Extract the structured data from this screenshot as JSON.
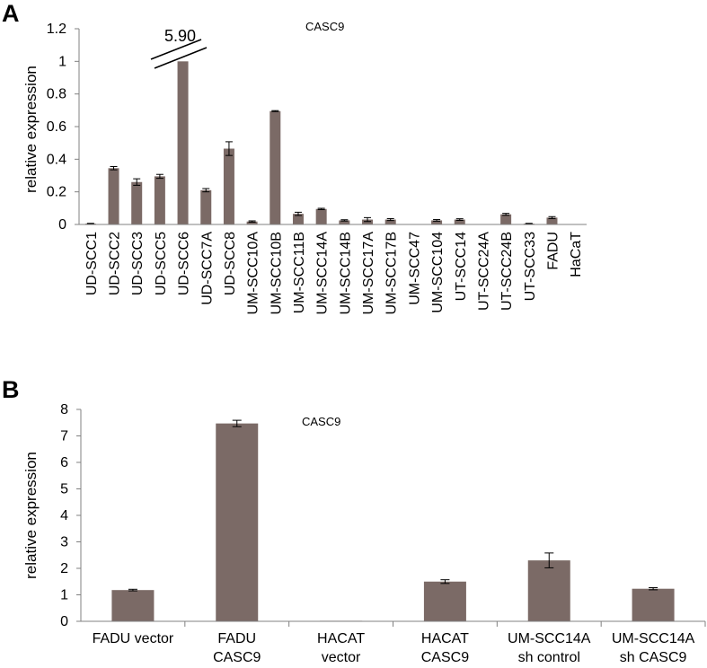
{
  "panels": [
    {
      "panel_label": "A",
      "chart_data": {
        "type": "bar",
        "title": "CASC9",
        "ylabel": "relative expression",
        "xlabel": "",
        "ylim": [
          0,
          1.2
        ],
        "yticks": [
          "0",
          "0.2",
          "0.4",
          "0.6",
          "0.8",
          "1",
          "1.2"
        ],
        "categories": [
          "UD-SCC1",
          "UD-SCC2",
          "UD-SCC3",
          "UD-SCC5",
          "UD-SCC6",
          "UD-SCC7A",
          "UD-SCC8",
          "UM-SCC10A",
          "UM-SCC10B",
          "UM-SCC11B",
          "UM-SCC14A",
          "UM-SCC14B",
          "UM-SCC17A",
          "UM-SCC17B",
          "UM-SCC47",
          "UM-SCC104",
          "UT-SCC14",
          "UT-SCC24A",
          "UT-SCC24B",
          "UT-SCC33",
          "FADU",
          "HaCaT"
        ],
        "values": [
          0.005,
          0.345,
          0.26,
          0.295,
          1.0,
          0.21,
          0.465,
          0.018,
          0.695,
          0.065,
          0.095,
          0.025,
          0.03,
          0.03,
          0.0,
          0.025,
          0.03,
          0.0,
          0.062,
          0.005,
          0.042,
          0.0
        ],
        "errors": [
          0.002,
          0.01,
          0.02,
          0.012,
          0.0,
          0.01,
          0.042,
          0.004,
          0.003,
          0.01,
          0.004,
          0.004,
          0.012,
          0.006,
          0.0,
          0.005,
          0.005,
          0.0,
          0.006,
          0.002,
          0.006,
          0.0
        ],
        "break_label": "5.90",
        "bar_color": "#7b6a66",
        "grid": false
      }
    },
    {
      "panel_label": "B",
      "chart_data": {
        "type": "bar",
        "title": "CASC9",
        "ylabel": "relative expression",
        "xlabel": "",
        "ylim": [
          0,
          8
        ],
        "yticks": [
          "0",
          "1",
          "2",
          "3",
          "4",
          "5",
          "6",
          "7",
          "8"
        ],
        "categories": [
          [
            "FADU vector"
          ],
          [
            "FADU",
            "CASC9"
          ],
          [
            "HACAT",
            "vector"
          ],
          [
            "HACAT",
            "CASC9"
          ],
          [
            "UM-SCC14A",
            "sh control"
          ],
          [
            "UM-SCC14A",
            "sh CASC9"
          ]
        ],
        "values": [
          1.18,
          7.47,
          0.02,
          1.5,
          2.3,
          1.23
        ],
        "errors": [
          0.03,
          0.12,
          0.0,
          0.07,
          0.28,
          0.04
        ],
        "bar_color": "#7b6a66",
        "grid": false
      }
    }
  ]
}
